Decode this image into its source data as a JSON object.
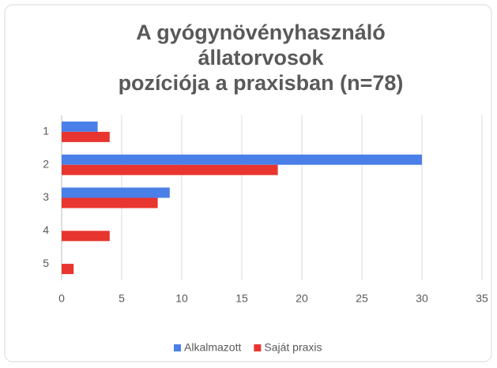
{
  "chart_data": {
    "type": "barh",
    "title": [
      "A gyógynövényhasználó",
      "állatorvosok",
      "pozíciója a praxisban (n=78)"
    ],
    "categories": [
      "1",
      "2",
      "3",
      "4",
      "5"
    ],
    "series": [
      {
        "name": "Alkalmazott",
        "color": "#4a7fe8",
        "values": [
          3,
          30,
          9,
          0,
          0
        ]
      },
      {
        "name": "Saját praxis",
        "color": "#e8352f",
        "values": [
          4,
          18,
          8,
          4,
          1
        ]
      }
    ],
    "xlim": [
      0,
      35
    ],
    "xticks": [
      0,
      5,
      10,
      15,
      20,
      25,
      30,
      35
    ],
    "grid": true,
    "legend": "bottom"
  }
}
